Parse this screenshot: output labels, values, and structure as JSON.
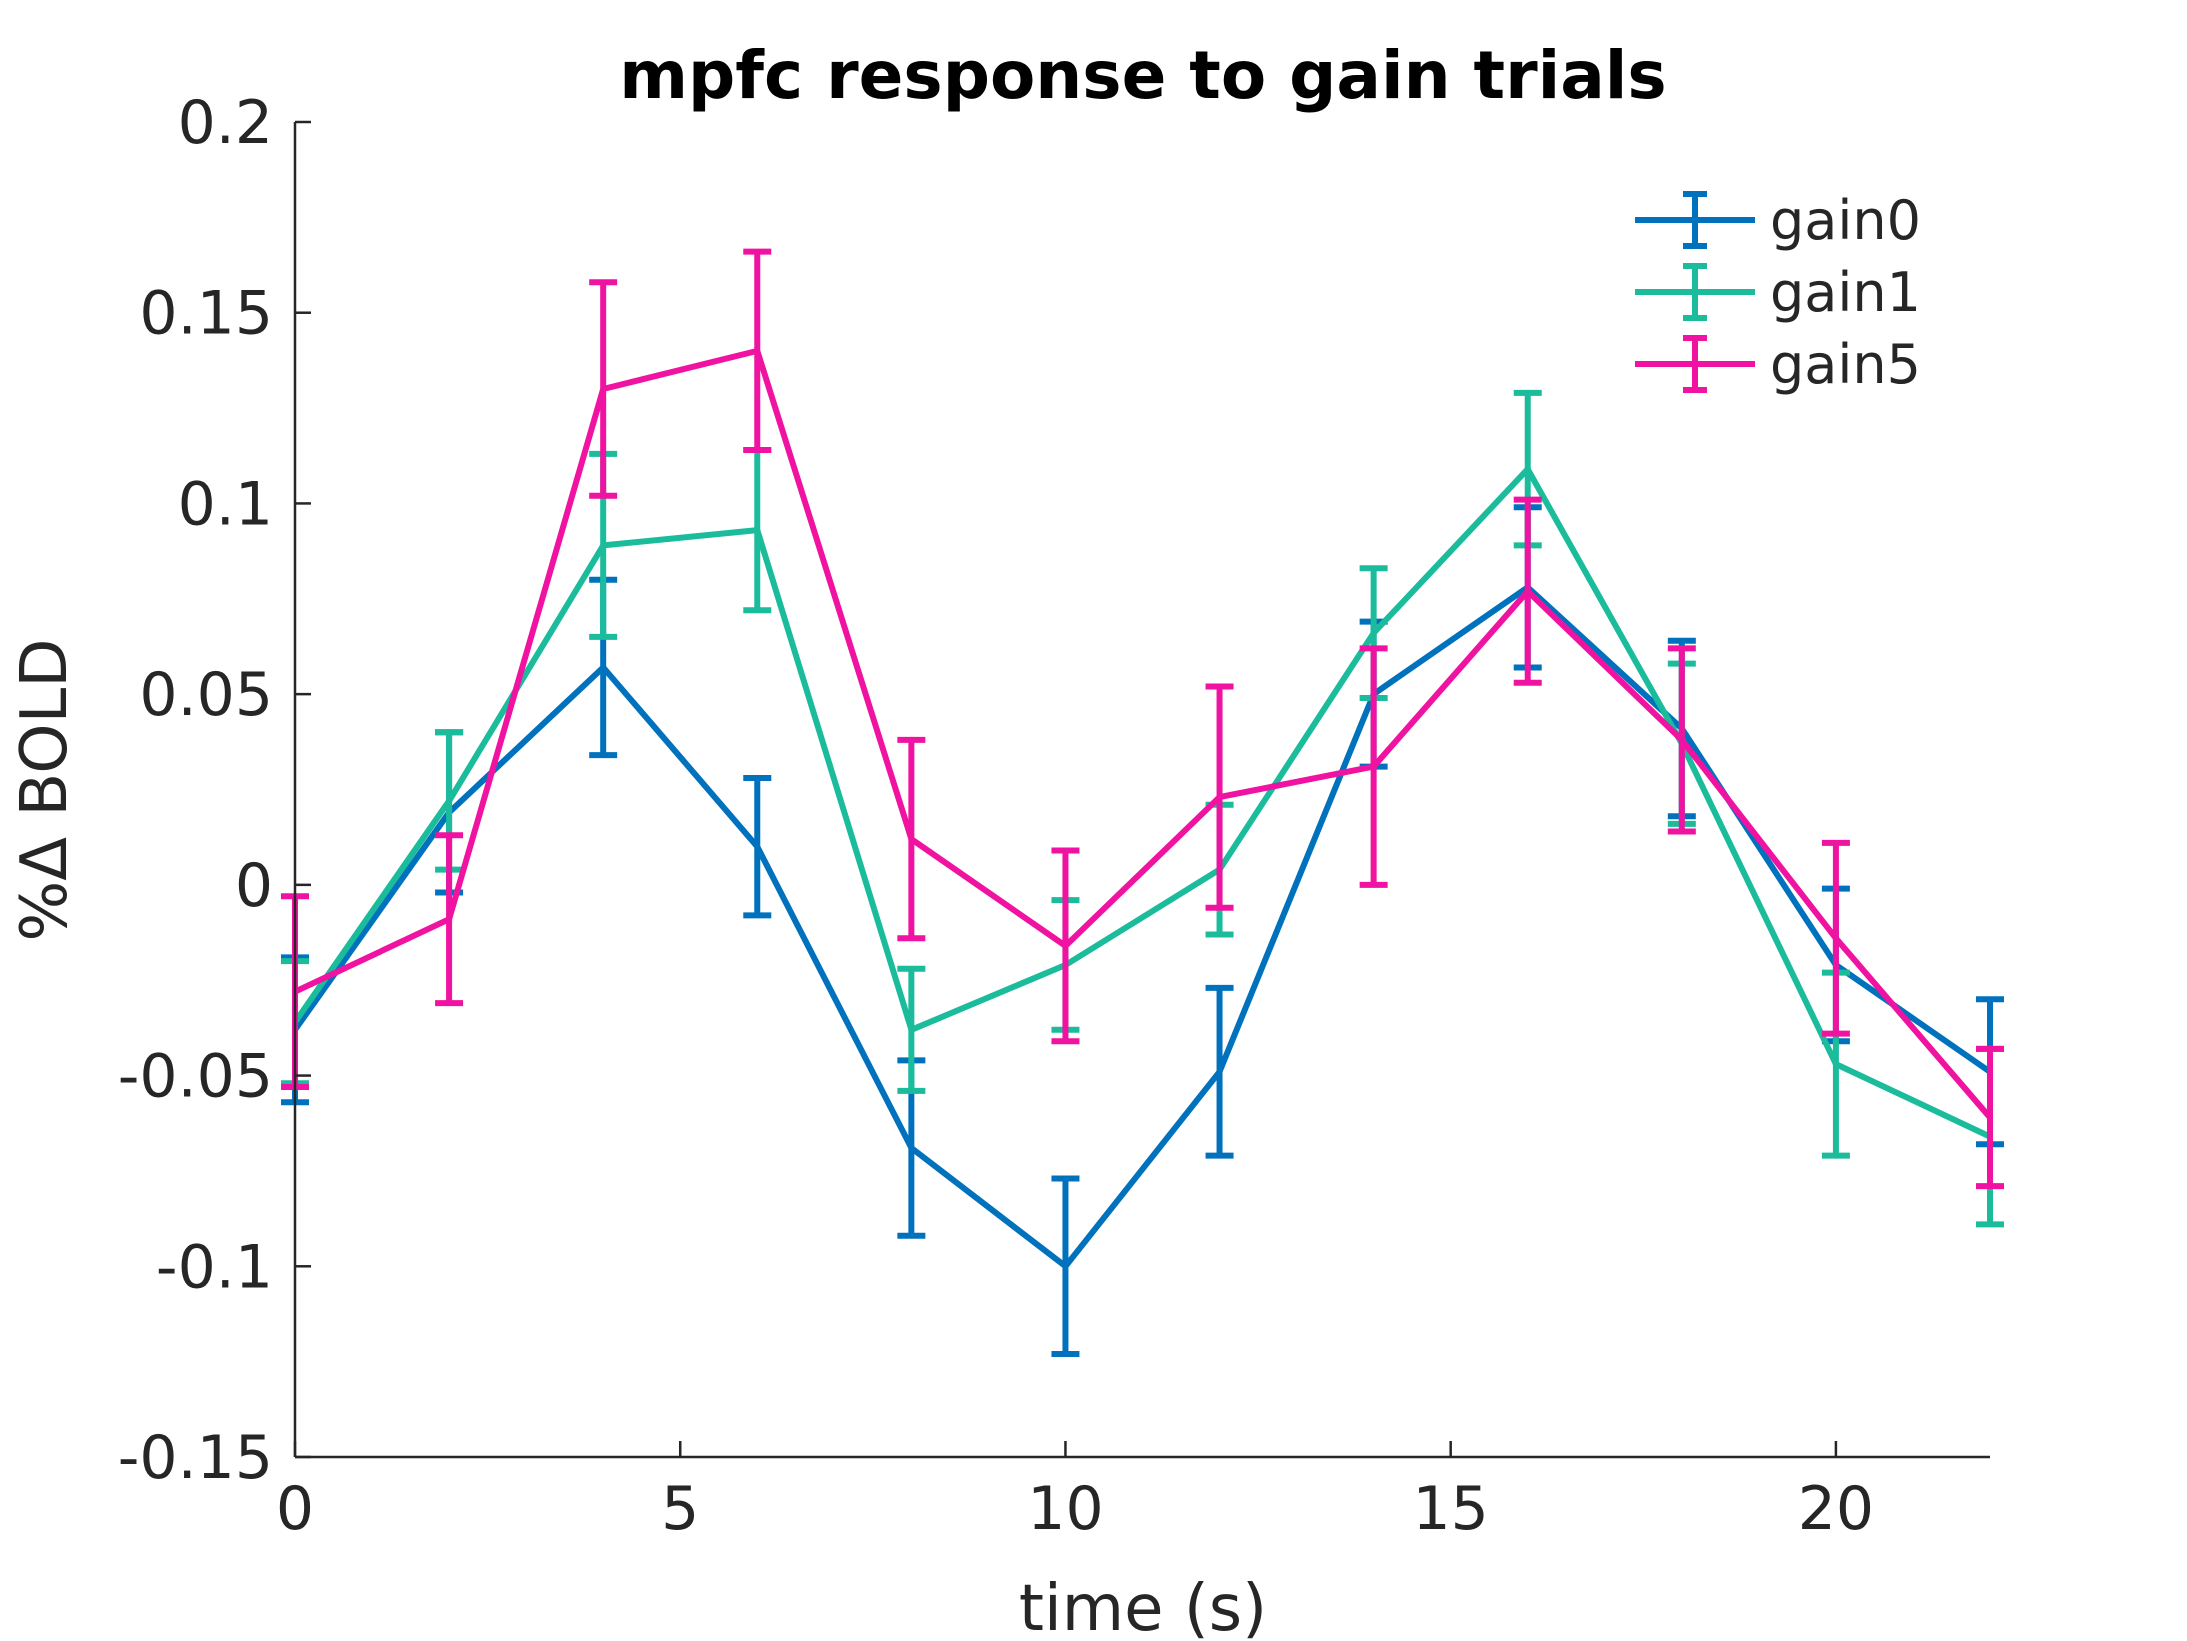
{
  "chart_data": {
    "type": "line",
    "title": "mpfc response to gain trials",
    "xlabel": "time (s)",
    "ylabel": "%Δ BOLD",
    "xlim": [
      0,
      22
    ],
    "ylim": [
      -0.15,
      0.2
    ],
    "xticks": [
      0,
      5,
      10,
      15,
      20
    ],
    "xtick_labels": [
      "0",
      "5",
      "10",
      "15",
      "20"
    ],
    "yticks": [
      -0.15,
      -0.1,
      -0.05,
      0,
      0.05,
      0.1,
      0.15,
      0.2
    ],
    "ytick_labels": [
      "-0.15",
      "-0.1",
      "-0.05",
      "0",
      "0.05",
      "0.1",
      "0.15",
      "0.2"
    ],
    "grid": false,
    "legend_position": "top-right",
    "error_bars": true,
    "x": [
      0,
      2,
      4,
      6,
      8,
      10,
      12,
      14,
      16,
      18,
      20,
      22
    ],
    "series": [
      {
        "name": "gain0",
        "color": "#0072BD",
        "values": [
          -0.038,
          0.019,
          0.057,
          0.01,
          -0.069,
          -0.1,
          -0.049,
          0.05,
          0.078,
          0.041,
          -0.021,
          -0.049
        ],
        "errors": [
          0.019,
          0.021,
          0.023,
          0.018,
          0.023,
          0.023,
          0.022,
          0.019,
          0.021,
          0.023,
          0.02,
          0.019
        ]
      },
      {
        "name": "gain1",
        "color": "#1ABC9C",
        "values": [
          -0.036,
          0.022,
          0.089,
          0.093,
          -0.038,
          -0.021,
          0.004,
          0.066,
          0.109,
          0.037,
          -0.047,
          -0.066
        ],
        "errors": [
          0.016,
          0.018,
          0.024,
          0.021,
          0.016,
          0.017,
          0.017,
          0.017,
          0.02,
          0.021,
          0.024,
          0.023
        ]
      },
      {
        "name": "gain5",
        "color": "#F012A0",
        "values": [
          -0.028,
          -0.009,
          0.13,
          0.14,
          0.012,
          -0.016,
          0.023,
          0.031,
          0.077,
          0.038,
          -0.014,
          -0.061
        ],
        "errors": [
          0.025,
          0.022,
          0.028,
          0.026,
          0.026,
          0.025,
          0.029,
          0.031,
          0.024,
          0.024,
          0.025,
          0.018
        ]
      }
    ]
  }
}
